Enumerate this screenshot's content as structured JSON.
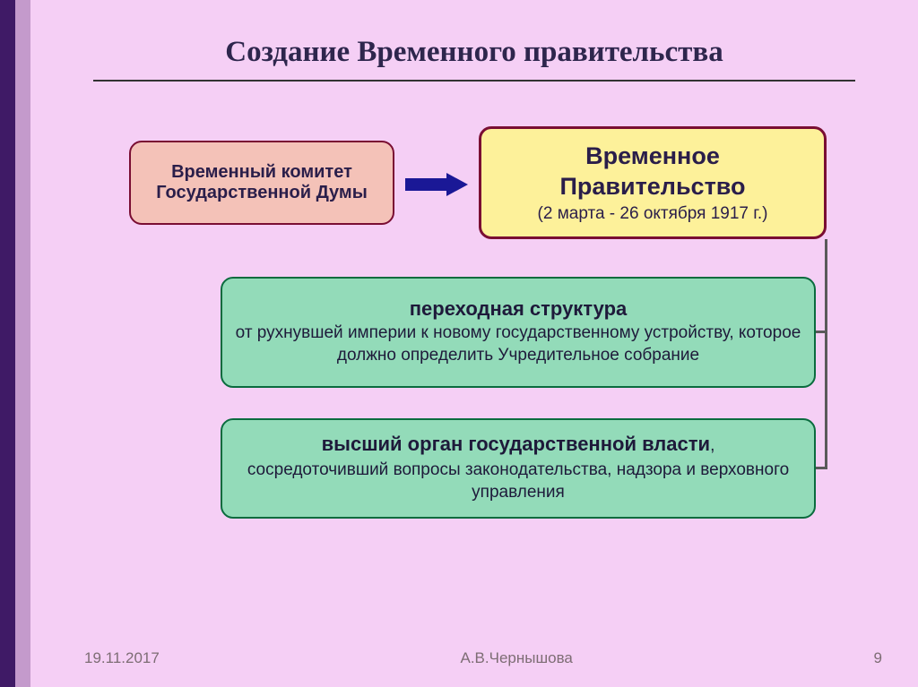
{
  "slide": {
    "title": "Создание Временного правительства",
    "background": "#f5cff5",
    "strip_colors": [
      "#3f1a66",
      "#c49acc"
    ]
  },
  "boxes": {
    "committee": {
      "title": "Временный комитет Государственной Думы",
      "bg": "#f4c2b8",
      "border": "#7a0e33",
      "title_fontsize": 20
    },
    "government": {
      "title": "Временное Правительство",
      "subtitle": "(2 марта - 26 октября 1917 г.)",
      "bg": "#fdf19a",
      "border": "#7a0e33",
      "title_fontsize": 27,
      "sub_fontsize": 19
    },
    "transition": {
      "title": "переходная структура",
      "subtitle": "от рухнувшей империи к новому государственному устройству, которое должно определить Учредительное собрание",
      "bg": "#93dbb9",
      "border": "#0a6b3e",
      "title_fontsize": 22,
      "sub_fontsize": 19
    },
    "power": {
      "title": "высший орган государственной власти",
      "title_suffix": ",",
      "subtitle": "сосредоточивший вопросы законодательства, надзора и верховного управления",
      "bg": "#93dbb9",
      "border": "#0a6b3e",
      "title_fontsize": 22,
      "sub_fontsize": 19
    }
  },
  "arrow": {
    "color": "#1a1896"
  },
  "connectors": {
    "color": "#5a5a5a"
  },
  "footer": {
    "date": "19.11.2017",
    "author": "А.В.Чернышова",
    "page": "9",
    "color": "#7d6d74",
    "fontsize": 17
  }
}
